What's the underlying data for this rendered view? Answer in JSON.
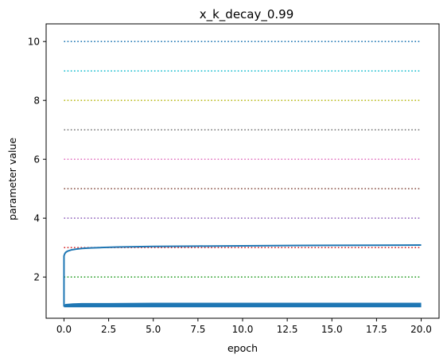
{
  "chart_data": {
    "type": "line",
    "title": "x_k_decay_0.99",
    "xlabel": "epoch",
    "ylabel": "parameter value",
    "xlim": [
      -1,
      21
    ],
    "ylim": [
      0.6,
      10.6
    ],
    "xticks": [
      0.0,
      2.5,
      5.0,
      7.5,
      10.0,
      12.5,
      15.0,
      17.5,
      20.0
    ],
    "xtick_labels": [
      "0.0",
      "2.5",
      "5.0",
      "7.5",
      "10.0",
      "12.5",
      "15.0",
      "17.5",
      "20.0"
    ],
    "yticks": [
      2,
      4,
      6,
      8,
      10
    ],
    "ytick_labels": [
      "2",
      "4",
      "6",
      "8",
      "10"
    ],
    "grid": false,
    "reference_lines": [
      {
        "y": 1,
        "color": "#ff7f0e",
        "style": "dotted"
      },
      {
        "y": 2,
        "color": "#2ca02c",
        "style": "dotted"
      },
      {
        "y": 3,
        "color": "#d62728",
        "style": "dotted"
      },
      {
        "y": 4,
        "color": "#9467bd",
        "style": "dotted"
      },
      {
        "y": 5,
        "color": "#8c564b",
        "style": "dotted"
      },
      {
        "y": 6,
        "color": "#e377c2",
        "style": "dotted"
      },
      {
        "y": 7,
        "color": "#7f7f7f",
        "style": "dotted"
      },
      {
        "y": 8,
        "color": "#bcbd22",
        "style": "dotted"
      },
      {
        "y": 9,
        "color": "#17becf",
        "style": "dotted"
      },
      {
        "y": 10,
        "color": "#1f77b4",
        "style": "dotted"
      }
    ],
    "series": [
      {
        "color": "#1f77b4",
        "x": [
          0,
          0,
          0.05,
          0.1,
          0.2,
          0.4,
          0.7,
          1.0,
          1.5,
          2.0,
          3.0,
          4.0,
          5.0,
          7.5,
          10.0,
          12.5,
          15.0,
          17.5,
          20.0
        ],
        "y": [
          1.0,
          2.72,
          2.8,
          2.84,
          2.88,
          2.92,
          2.95,
          2.97,
          2.99,
          3.0,
          3.02,
          3.03,
          3.04,
          3.05,
          3.06,
          3.07,
          3.075,
          3.08,
          3.085
        ]
      },
      {
        "color": "#1f77b4",
        "x": [
          0,
          0.1,
          0.5,
          1.0,
          2.5,
          5.0,
          7.5,
          10.0,
          12.5,
          15.0,
          17.5,
          20.0
        ],
        "y": [
          1.0,
          1.06,
          1.08,
          1.09,
          1.09,
          1.1,
          1.1,
          1.1,
          1.1,
          1.1,
          1.1,
          1.1
        ]
      },
      {
        "color": "#1f77b4",
        "x": [
          0,
          0.1,
          0.5,
          1.0,
          2.5,
          5.0,
          10.0,
          15.0,
          20.0
        ],
        "y": [
          1.0,
          1.04,
          1.05,
          1.06,
          1.06,
          1.06,
          1.06,
          1.06,
          1.06
        ]
      },
      {
        "color": "#1f77b4",
        "x": [
          0,
          0.1,
          0.5,
          1.0,
          2.5,
          5.0,
          10.0,
          15.0,
          20.0
        ],
        "y": [
          1.0,
          1.02,
          1.03,
          1.03,
          1.03,
          1.03,
          1.03,
          1.03,
          1.03
        ]
      },
      {
        "color": "#1f77b4",
        "x": [
          0,
          20.0
        ],
        "y": [
          1.0,
          1.0
        ]
      }
    ]
  }
}
